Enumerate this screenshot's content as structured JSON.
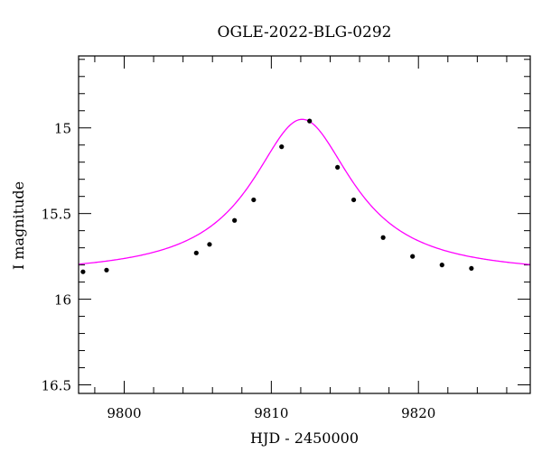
{
  "chart_data": {
    "type": "scatter",
    "title": "OGLE-2022-BLG-0292",
    "xlabel": "HJD - 2450000",
    "ylabel": "I magnitude",
    "xlim": [
      9796.9,
      9827.6
    ],
    "ylim": [
      16.55,
      14.58
    ],
    "y_inverted": true,
    "x_ticks": [
      9800,
      9810,
      9820
    ],
    "x_tick_labels": [
      "9800",
      "9810",
      "9820"
    ],
    "y_ticks": [
      15,
      15.5,
      16,
      16.5
    ],
    "y_tick_labels": [
      "15",
      "15.5",
      "16",
      "16.5"
    ],
    "grid": false,
    "series": [
      {
        "kind": "points",
        "color": "#000000",
        "x": [
          9797.2,
          9798.8,
          9804.9,
          9805.8,
          9807.5,
          9808.8,
          9810.7,
          9812.6,
          9814.5,
          9815.6,
          9817.6,
          9819.6,
          9821.6,
          9823.6
        ],
        "y": [
          15.84,
          15.83,
          15.73,
          15.68,
          15.54,
          15.42,
          15.11,
          14.96,
          15.23,
          15.42,
          15.64,
          15.75,
          15.8,
          15.82
        ]
      },
      {
        "kind": "model",
        "color": "#ff00ff",
        "t0": 9812.1,
        "baseline": 15.86,
        "peak": 14.95,
        "tE": 4.2
      }
    ]
  }
}
